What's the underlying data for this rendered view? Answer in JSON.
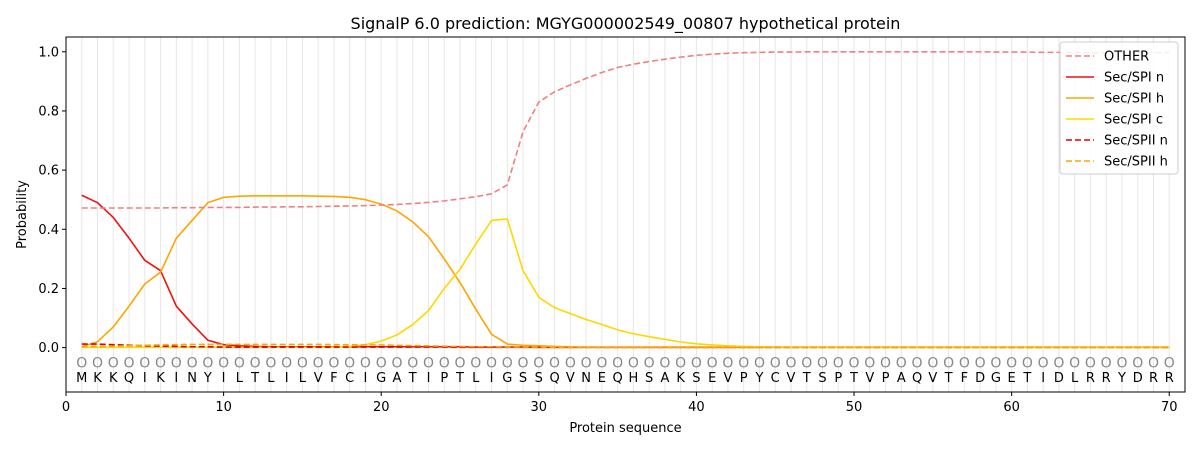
{
  "chart_data": {
    "type": "line",
    "title": "SignalP 6.0 prediction: MGYG000002549_00807 hypothetical protein",
    "xlabel": "Protein sequence",
    "ylabel": "Probability",
    "xlim": [
      0,
      71
    ],
    "ylim": [
      -0.15,
      1.05
    ],
    "xticks": [
      0,
      10,
      20,
      30,
      40,
      50,
      60,
      70
    ],
    "yticks": [
      0.0,
      0.2,
      0.4,
      0.6,
      0.8,
      1.0
    ],
    "grid": "vertical lines at each residue",
    "legend_position": "top-right",
    "sequence": [
      "M",
      "K",
      "K",
      "Q",
      "I",
      "K",
      "I",
      "N",
      "Y",
      "I",
      "L",
      "T",
      "L",
      "I",
      "L",
      "V",
      "F",
      "C",
      "I",
      "G",
      "A",
      "T",
      "I",
      "P",
      "T",
      "L",
      "I",
      "G",
      "S",
      "S",
      "Q",
      "V",
      "N",
      "E",
      "Q",
      "H",
      "S",
      "A",
      "K",
      "S",
      "E",
      "V",
      "P",
      "Y",
      "C",
      "V",
      "T",
      "S",
      "P",
      "T",
      "V",
      "P",
      "A",
      "Q",
      "V",
      "T",
      "F",
      "D",
      "G",
      "E",
      "T",
      "I",
      "D",
      "L",
      "R",
      "R",
      "Y",
      "D",
      "R",
      "R"
    ],
    "marker_glyph": "O",
    "series": [
      {
        "name": "OTHER",
        "color": "#f08080",
        "dash": true,
        "values": [
          0.472,
          0.472,
          0.472,
          0.472,
          0.472,
          0.472,
          0.473,
          0.473,
          0.474,
          0.474,
          0.474,
          0.475,
          0.475,
          0.476,
          0.476,
          0.477,
          0.478,
          0.479,
          0.48,
          0.482,
          0.484,
          0.487,
          0.491,
          0.496,
          0.503,
          0.51,
          0.52,
          0.55,
          0.73,
          0.83,
          0.865,
          0.888,
          0.91,
          0.93,
          0.947,
          0.958,
          0.967,
          0.975,
          0.982,
          0.988,
          0.992,
          0.995,
          0.997,
          0.998,
          0.999,
          0.999,
          1.0,
          1.0,
          1.0,
          1.0,
          1.0,
          1.0,
          1.0,
          1.0,
          1.0,
          1.0,
          1.0,
          1.0,
          0.999,
          0.999,
          0.999,
          0.998,
          0.998,
          0.998,
          0.997,
          0.997,
          0.997,
          0.997,
          0.997,
          0.997
        ]
      },
      {
        "name": "Sec/SPI n",
        "color": "#ee1111",
        "dash": false,
        "values": [
          0.515,
          0.49,
          0.44,
          0.37,
          0.295,
          0.26,
          0.14,
          0.08,
          0.025,
          0.01,
          0.006,
          0.004,
          0.003,
          0.003,
          0.003,
          0.003,
          0.003,
          0.003,
          0.003,
          0.003,
          0.003,
          0.003,
          0.003,
          0.003,
          0.003,
          0.002,
          0.002,
          0.002,
          0.002,
          0.001,
          0.001,
          0.001,
          0.001,
          0.001,
          0.001,
          0.001,
          0.001,
          0.001,
          0.001,
          0.001,
          0.001,
          0.001,
          0.001,
          0.001,
          0.001,
          0.001,
          0.001,
          0.001,
          0.001,
          0.001,
          0.001,
          0.001,
          0.001,
          0.001,
          0.001,
          0.001,
          0.001,
          0.001,
          0.001,
          0.001,
          0.001,
          0.001,
          0.001,
          0.001,
          0.001,
          0.001,
          0.001,
          0.001,
          0.001,
          0.001
        ]
      },
      {
        "name": "Sec/SPI h",
        "color": "#ffa500",
        "dash": false,
        "values": [
          0.003,
          0.02,
          0.07,
          0.14,
          0.215,
          0.255,
          0.37,
          0.43,
          0.49,
          0.508,
          0.512,
          0.513,
          0.513,
          0.513,
          0.513,
          0.512,
          0.511,
          0.508,
          0.5,
          0.485,
          0.462,
          0.425,
          0.375,
          0.3,
          0.22,
          0.13,
          0.045,
          0.012,
          0.008,
          0.006,
          0.004,
          0.003,
          0.002,
          0.002,
          0.002,
          0.002,
          0.002,
          0.002,
          0.002,
          0.002,
          0.002,
          0.002,
          0.002,
          0.002,
          0.002,
          0.002,
          0.002,
          0.002,
          0.002,
          0.002,
          0.002,
          0.002,
          0.002,
          0.002,
          0.002,
          0.002,
          0.002,
          0.002,
          0.002,
          0.002,
          0.002,
          0.002,
          0.002,
          0.002,
          0.002,
          0.002,
          0.002,
          0.002,
          0.002,
          0.002
        ]
      },
      {
        "name": "Sec/SPI c",
        "color": "#ffd700",
        "dash": false,
        "values": [
          0.001,
          0.001,
          0.001,
          0.001,
          0.001,
          0.001,
          0.001,
          0.001,
          0.001,
          0.001,
          0.001,
          0.001,
          0.001,
          0.001,
          0.001,
          0.001,
          0.002,
          0.004,
          0.01,
          0.022,
          0.043,
          0.078,
          0.125,
          0.2,
          0.265,
          0.35,
          0.43,
          0.435,
          0.26,
          0.17,
          0.135,
          0.115,
          0.095,
          0.078,
          0.06,
          0.047,
          0.037,
          0.028,
          0.019,
          0.013,
          0.009,
          0.006,
          0.004,
          0.003,
          0.002,
          0.001,
          0.001,
          0.001,
          0.001,
          0.001,
          0.001,
          0.001,
          0.001,
          0.001,
          0.001,
          0.001,
          0.001,
          0.001,
          0.001,
          0.001,
          0.001,
          0.001,
          0.001,
          0.001,
          0.001,
          0.001,
          0.001,
          0.001,
          0.001,
          0.001
        ]
      },
      {
        "name": "Sec/SPII n",
        "color": "#dd0000",
        "dash": true,
        "values": [
          0.012,
          0.012,
          0.01,
          0.008,
          0.006,
          0.005,
          0.004,
          0.003,
          0.003,
          0.002,
          0.002,
          0.002,
          0.002,
          0.002,
          0.002,
          0.002,
          0.002,
          0.002,
          0.002,
          0.002,
          0.002,
          0.002,
          0.002,
          0.002,
          0.001,
          0.001,
          0.001,
          0.001,
          0.001,
          0.001,
          0.001,
          0.001,
          0.001,
          0.001,
          0.001,
          0.001,
          0.001,
          0.001,
          0.001,
          0.001,
          0.001,
          0.001,
          0.001,
          0.001,
          0.001,
          0.001,
          0.001,
          0.001,
          0.001,
          0.001,
          0.001,
          0.001,
          0.001,
          0.001,
          0.001,
          0.001,
          0.001,
          0.001,
          0.001,
          0.001,
          0.001,
          0.001,
          0.001,
          0.001,
          0.001,
          0.001,
          0.001,
          0.001,
          0.001,
          0.001
        ]
      },
      {
        "name": "Sec/SPII h",
        "color": "#ffa500",
        "dash": true,
        "values": [
          0.003,
          0.004,
          0.005,
          0.006,
          0.008,
          0.009,
          0.01,
          0.011,
          0.011,
          0.011,
          0.011,
          0.011,
          0.011,
          0.011,
          0.011,
          0.011,
          0.01,
          0.01,
          0.009,
          0.009,
          0.008,
          0.007,
          0.006,
          0.005,
          0.004,
          0.003,
          0.003,
          0.002,
          0.002,
          0.002,
          0.001,
          0.001,
          0.001,
          0.001,
          0.001,
          0.001,
          0.001,
          0.001,
          0.001,
          0.001,
          0.001,
          0.001,
          0.001,
          0.001,
          0.001,
          0.001,
          0.001,
          0.001,
          0.001,
          0.001,
          0.001,
          0.001,
          0.001,
          0.001,
          0.001,
          0.001,
          0.001,
          0.001,
          0.001,
          0.001,
          0.001,
          0.001,
          0.001,
          0.001,
          0.001,
          0.001,
          0.001,
          0.001,
          0.001,
          0.001
        ]
      }
    ]
  }
}
